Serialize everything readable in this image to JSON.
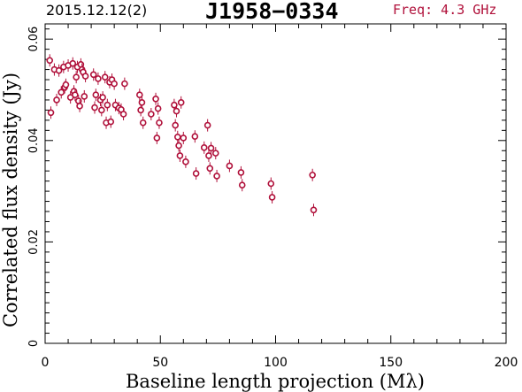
{
  "header": {
    "date": "2015.12.12(2)",
    "source": "J1958−0334",
    "freq": "Freq: 4.3 GHz"
  },
  "colors": {
    "points": "#b0103a",
    "axes": "#000000",
    "freq_text": "#b0103a"
  },
  "chart_data": {
    "type": "scatter",
    "title": "J1958−0334",
    "xlabel": "Baseline length projection (Mλ)",
    "ylabel": "Correlated flux density (Jy)",
    "xlim": [
      0,
      200
    ],
    "ylim": [
      0,
      0.063
    ],
    "xticks": [
      0,
      50,
      100,
      150,
      200
    ],
    "xtick_labels": [
      "0",
      "50",
      "100",
      "150",
      "200"
    ],
    "yticks": [
      0,
      0.02,
      0.04,
      0.06
    ],
    "ytick_labels": [
      "0",
      "0.02",
      "0.04",
      "0.06"
    ],
    "grid": false,
    "series": [
      {
        "points": [
          [
            2,
            0.0558
          ],
          [
            2.5,
            0.0455
          ],
          [
            4,
            0.054
          ],
          [
            5,
            0.048
          ],
          [
            6,
            0.0538
          ],
          [
            7,
            0.0495
          ],
          [
            8,
            0.0545
          ],
          [
            8.5,
            0.0505
          ],
          [
            9,
            0.051
          ],
          [
            10,
            0.0548
          ],
          [
            11,
            0.0485
          ],
          [
            12,
            0.0552
          ],
          [
            12.5,
            0.0497
          ],
          [
            13,
            0.049
          ],
          [
            13.5,
            0.0525
          ],
          [
            14,
            0.0545
          ],
          [
            14.5,
            0.0478
          ],
          [
            15,
            0.0468
          ],
          [
            15.5,
            0.055
          ],
          [
            16,
            0.054
          ],
          [
            16.5,
            0.0535
          ],
          [
            17,
            0.0487
          ],
          [
            17.5,
            0.0527
          ],
          [
            21,
            0.053
          ],
          [
            21.5,
            0.0465
          ],
          [
            22,
            0.049
          ],
          [
            23,
            0.0522
          ],
          [
            24,
            0.048
          ],
          [
            24.5,
            0.046
          ],
          [
            25,
            0.0485
          ],
          [
            26,
            0.0525
          ],
          [
            26.5,
            0.0435
          ],
          [
            27,
            0.047
          ],
          [
            28,
            0.0515
          ],
          [
            28.5,
            0.0437
          ],
          [
            29,
            0.052
          ],
          [
            30,
            0.0512
          ],
          [
            30.5,
            0.047
          ],
          [
            32,
            0.0464
          ],
          [
            33,
            0.0461
          ],
          [
            34,
            0.0452
          ],
          [
            34.5,
            0.0512
          ],
          [
            41,
            0.049
          ],
          [
            41.5,
            0.046
          ],
          [
            42,
            0.0475
          ],
          [
            42.5,
            0.0435
          ],
          [
            46,
            0.0452
          ],
          [
            48,
            0.0482
          ],
          [
            48.5,
            0.0405
          ],
          [
            49,
            0.0463
          ],
          [
            49.5,
            0.0435
          ],
          [
            56,
            0.047
          ],
          [
            56.5,
            0.043
          ],
          [
            57,
            0.0458
          ],
          [
            57.5,
            0.0407
          ],
          [
            58,
            0.039
          ],
          [
            58.5,
            0.037
          ],
          [
            59,
            0.0475
          ],
          [
            60,
            0.0405
          ],
          [
            61,
            0.0358
          ],
          [
            65,
            0.0408
          ],
          [
            65.5,
            0.0335
          ],
          [
            69,
            0.0386
          ],
          [
            70.5,
            0.043
          ],
          [
            71,
            0.037
          ],
          [
            71.5,
            0.0345
          ],
          [
            72,
            0.0385
          ],
          [
            74,
            0.0375
          ],
          [
            74.5,
            0.033
          ],
          [
            80,
            0.035
          ],
          [
            85,
            0.0337
          ],
          [
            85.5,
            0.0312
          ],
          [
            98,
            0.0315
          ],
          [
            98.5,
            0.0288
          ],
          [
            116,
            0.0332
          ],
          [
            116.5,
            0.0263
          ]
        ]
      }
    ]
  }
}
